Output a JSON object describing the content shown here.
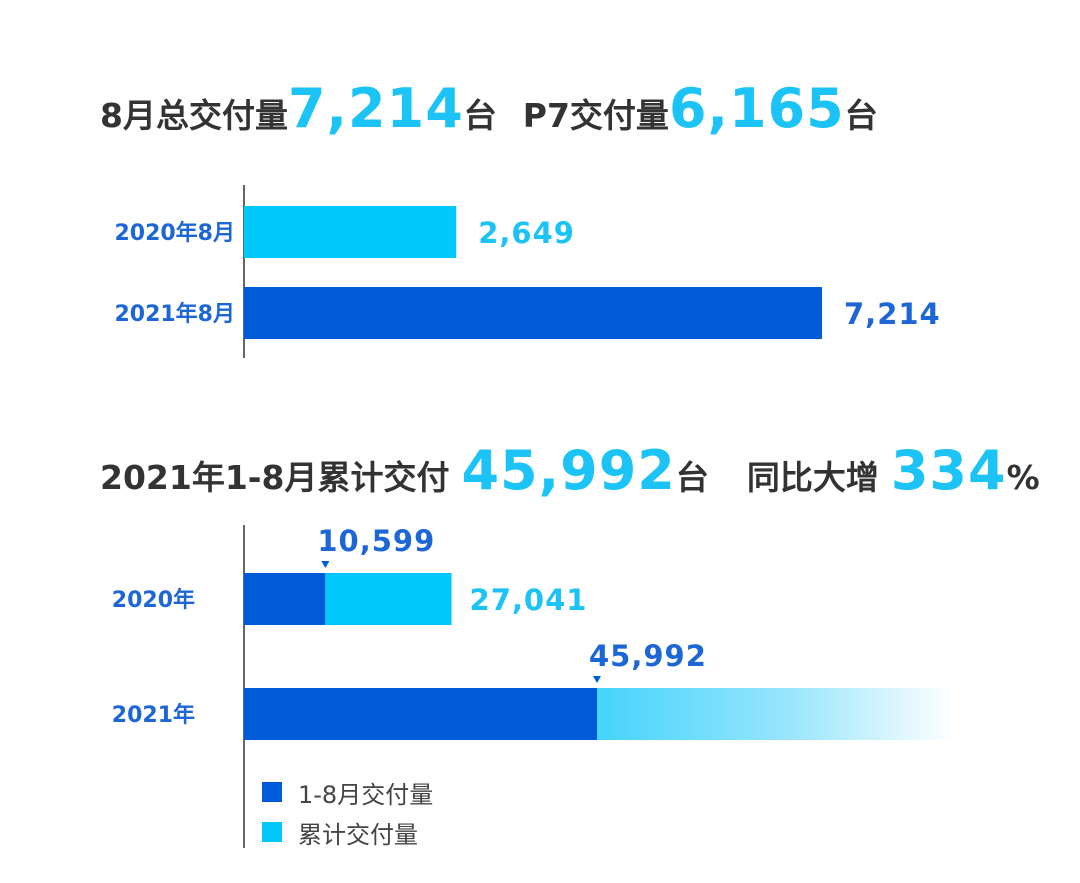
{
  "headline1": {
    "part1": "8月总交付量",
    "value1": "7,214",
    "unit1": "台",
    "part2": "P7交付量",
    "value2": "6,165",
    "unit2": "台"
  },
  "headline2": {
    "part1": "2021年1-8月累计交付",
    "value1": "45,992",
    "unit1": "台",
    "part2": "同比大增",
    "value2": "334",
    "pct": "%"
  },
  "legend": [
    {
      "label": "1-8月交付量",
      "color": "#005bd8"
    },
    {
      "label": "累计交付量",
      "color": "#00c8fa"
    }
  ],
  "colors": {
    "dark_blue": "#005bd8",
    "light_blue": "#00c8fa",
    "value_light": "#1bc3f6",
    "value_dark": "#1d66d6"
  },
  "chart_data": [
    {
      "type": "bar",
      "orientation": "horizontal",
      "categories": [
        "2020年8月",
        "2021年8月"
      ],
      "values": [
        2649,
        7214
      ],
      "value_labels": [
        "2,649",
        "7,214"
      ],
      "bar_colors": [
        "#00c8fa",
        "#005bd8"
      ],
      "label_colors": [
        "#1bc3f6",
        "#1d66d6"
      ],
      "xlim": [
        0,
        7214
      ]
    },
    {
      "type": "bar",
      "orientation": "horizontal",
      "stacked": true,
      "categories": [
        "2020年",
        "2021年"
      ],
      "series": [
        {
          "name": "1-8月交付量",
          "values": [
            10599,
            45992
          ],
          "value_labels": [
            "10,599",
            "45,992"
          ],
          "color": "#005bd8"
        },
        {
          "name": "累计交付量",
          "values": [
            27041,
            null
          ],
          "value_labels": [
            "27,041",
            ""
          ],
          "color": "#00c8fa"
        }
      ],
      "note": "2021年累计交付量 bar fades out to the right",
      "xlim": [
        0,
        45992
      ]
    }
  ]
}
